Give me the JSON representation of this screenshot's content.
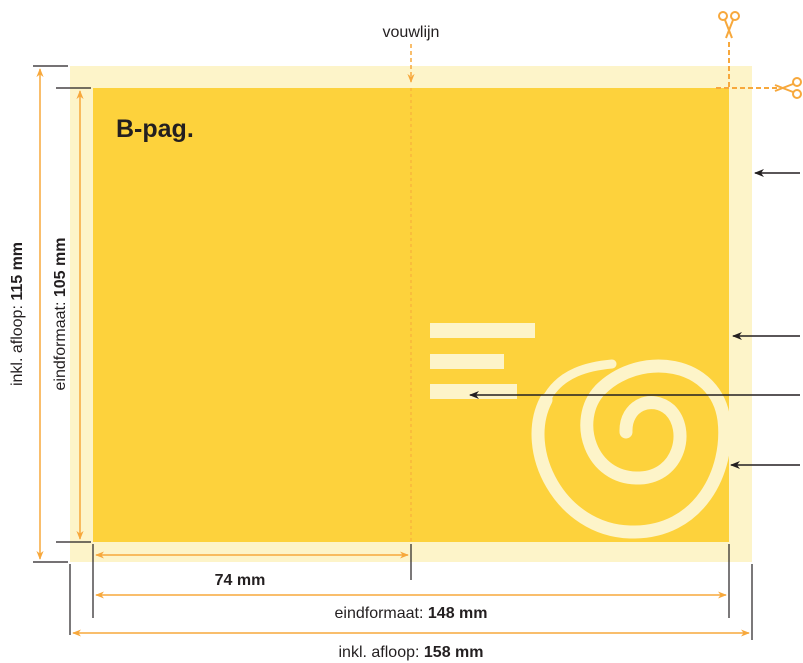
{
  "title": "B-pag.",
  "fold_label": "vouwlijn",
  "dim_half": {
    "value": "74 mm"
  },
  "dim_width_trim": {
    "prefix": "eindformaat: ",
    "value": "148 mm"
  },
  "dim_width_bleed": {
    "prefix": "inkl. afloop: ",
    "value": "158 mm"
  },
  "dim_height_trim": {
    "prefix": "eindformaat: ",
    "value": "105 mm"
  },
  "dim_height_bleed": {
    "prefix": "inkl. afloop: ",
    "value": "115 mm"
  },
  "icons": [
    "scissors-icon",
    "scissors-icon",
    "swirl-graphic"
  ],
  "colors": {
    "bleed": "#fdf4c9",
    "page": "#fdd23c",
    "dimension": "#f7a83c",
    "pointer": "#231f20"
  }
}
